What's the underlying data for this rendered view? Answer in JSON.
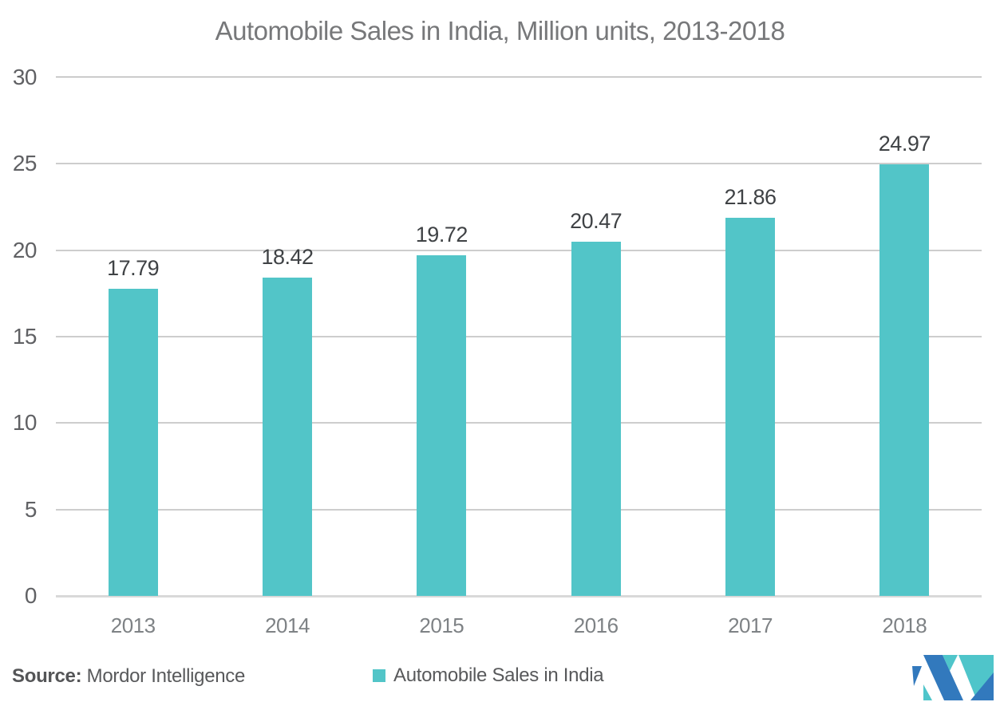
{
  "chart_data": {
    "type": "bar",
    "title": "Automobile Sales in India, Million units, 2013-2018",
    "categories": [
      "2013",
      "2014",
      "2015",
      "2016",
      "2017",
      "2018"
    ],
    "series": [
      {
        "name": "Automobile Sales in India",
        "values": [
          17.79,
          18.42,
          19.72,
          20.47,
          21.86,
          24.97
        ]
      }
    ],
    "data_labels": [
      "17.79",
      "18.42",
      "19.72",
      "20.47",
      "21.86",
      "24.97"
    ],
    "xlabel": "",
    "ylabel": "",
    "ylim": [
      0,
      30
    ],
    "yticks": [
      30,
      25,
      20,
      15,
      10,
      5,
      0
    ],
    "grid": "horizontal",
    "legend_position": "bottom",
    "bar_color": "#52c5c8"
  },
  "legend": {
    "label": "Automobile Sales in India",
    "swatch_color": "#52c5c8"
  },
  "footer": {
    "source_label": "Source:",
    "source_value": " Mordor Intelligence"
  },
  "logo": {
    "name": "mordor-intelligence-logo",
    "blue": "#3279bd",
    "teal": "#4fc5ca"
  },
  "colors": {
    "title_text": "#77787a",
    "value_label_text": "#3f4245",
    "axis_label_text": "#7e8285",
    "gridline": "#cdcdcd"
  }
}
